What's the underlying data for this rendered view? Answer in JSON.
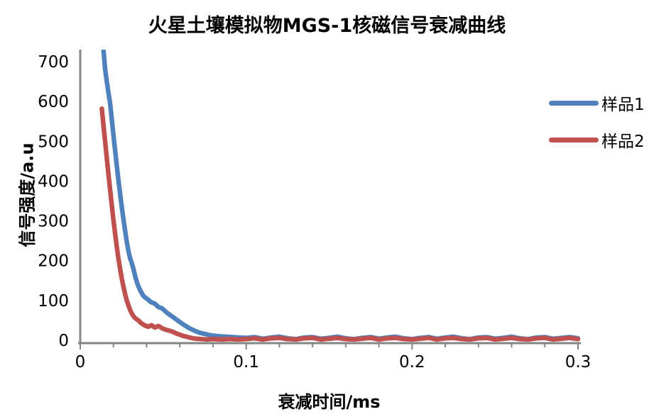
{
  "chart_data": {
    "type": "line",
    "title": "火星土壤模拟物MGS-1核磁信号衰减曲线",
    "xlabel": "衰减时间/ms",
    "ylabel": "信号强度/a.u",
    "xlim": [
      0,
      0.3
    ],
    "ylim": [
      0,
      700
    ],
    "display_ymax": 730,
    "grid": false,
    "legend_position": "right",
    "axis_color": "#848484",
    "text_color": "#000000",
    "background_color": "#ffffff",
    "xticks": [
      0,
      0.1,
      0.2,
      0.3
    ],
    "xtick_labels": [
      "0",
      "0.1",
      "0.2",
      "0.3"
    ],
    "minor_xtick_step": 0.02,
    "yticks": [
      0,
      100,
      200,
      300,
      400,
      500,
      600,
      700
    ],
    "ytick_labels": [
      "0",
      "100",
      "200",
      "300",
      "400",
      "500",
      "600",
      "700"
    ],
    "series": [
      {
        "name": "样品1",
        "color": "#4F81BD",
        "points": [
          [
            0.013,
            815
          ],
          [
            0.014,
            730
          ],
          [
            0.015,
            680
          ],
          [
            0.016,
            650
          ],
          [
            0.017,
            622
          ],
          [
            0.018,
            595
          ],
          [
            0.019,
            556
          ],
          [
            0.02,
            516
          ],
          [
            0.021,
            477
          ],
          [
            0.022,
            440
          ],
          [
            0.023,
            404
          ],
          [
            0.024,
            369
          ],
          [
            0.025,
            336
          ],
          [
            0.026,
            305
          ],
          [
            0.027,
            276
          ],
          [
            0.028,
            249
          ],
          [
            0.029,
            225
          ],
          [
            0.03,
            207
          ],
          [
            0.031,
            195
          ],
          [
            0.032,
            180
          ],
          [
            0.033,
            163
          ],
          [
            0.034,
            148
          ],
          [
            0.035,
            136
          ],
          [
            0.036,
            127
          ],
          [
            0.037,
            119
          ],
          [
            0.038,
            112
          ],
          [
            0.039,
            108
          ],
          [
            0.04,
            105
          ],
          [
            0.041,
            102
          ],
          [
            0.042,
            98
          ],
          [
            0.043,
            95
          ],
          [
            0.044,
            94
          ],
          [
            0.045,
            92
          ],
          [
            0.046,
            88
          ],
          [
            0.047,
            84
          ],
          [
            0.048,
            82
          ],
          [
            0.049,
            81
          ],
          [
            0.05,
            78
          ],
          [
            0.051,
            74
          ],
          [
            0.052,
            70
          ],
          [
            0.053,
            67
          ],
          [
            0.054,
            64
          ],
          [
            0.056,
            58
          ],
          [
            0.058,
            52
          ],
          [
            0.06,
            46
          ],
          [
            0.062,
            40
          ],
          [
            0.064,
            35
          ],
          [
            0.066,
            30
          ],
          [
            0.068,
            26
          ],
          [
            0.07,
            22
          ],
          [
            0.072,
            19
          ],
          [
            0.074,
            17
          ],
          [
            0.076,
            15
          ],
          [
            0.078,
            13
          ],
          [
            0.08,
            12
          ],
          [
            0.084,
            10
          ],
          [
            0.088,
            9
          ],
          [
            0.092,
            8
          ],
          [
            0.096,
            7
          ],
          [
            0.1,
            6
          ],
          [
            0.105,
            8
          ],
          [
            0.11,
            4
          ],
          [
            0.115,
            7
          ],
          [
            0.12,
            9
          ],
          [
            0.125,
            5
          ],
          [
            0.13,
            3
          ],
          [
            0.135,
            7
          ],
          [
            0.14,
            8
          ],
          [
            0.145,
            4
          ],
          [
            0.15,
            6
          ],
          [
            0.155,
            9
          ],
          [
            0.16,
            5
          ],
          [
            0.165,
            3
          ],
          [
            0.17,
            6
          ],
          [
            0.175,
            8
          ],
          [
            0.18,
            4
          ],
          [
            0.185,
            7
          ],
          [
            0.19,
            9
          ],
          [
            0.195,
            5
          ],
          [
            0.2,
            3
          ],
          [
            0.205,
            6
          ],
          [
            0.21,
            8
          ],
          [
            0.215,
            4
          ],
          [
            0.22,
            7
          ],
          [
            0.225,
            9
          ],
          [
            0.23,
            5
          ],
          [
            0.235,
            3
          ],
          [
            0.24,
            7
          ],
          [
            0.245,
            8
          ],
          [
            0.25,
            4
          ],
          [
            0.255,
            6
          ],
          [
            0.26,
            9
          ],
          [
            0.265,
            5
          ],
          [
            0.27,
            3
          ],
          [
            0.275,
            7
          ],
          [
            0.28,
            8
          ],
          [
            0.285,
            4
          ],
          [
            0.29,
            6
          ],
          [
            0.295,
            8
          ],
          [
            0.3,
            5
          ]
        ]
      },
      {
        "name": "样品2",
        "color": "#C0504D",
        "points": [
          [
            0.013,
            582
          ],
          [
            0.014,
            540
          ],
          [
            0.015,
            499
          ],
          [
            0.016,
            458
          ],
          [
            0.017,
            418
          ],
          [
            0.018,
            378
          ],
          [
            0.019,
            340
          ],
          [
            0.02,
            303
          ],
          [
            0.021,
            268
          ],
          [
            0.022,
            236
          ],
          [
            0.023,
            206
          ],
          [
            0.024,
            180
          ],
          [
            0.025,
            156
          ],
          [
            0.026,
            135
          ],
          [
            0.027,
            117
          ],
          [
            0.028,
            101
          ],
          [
            0.029,
            88
          ],
          [
            0.03,
            77
          ],
          [
            0.031,
            68
          ],
          [
            0.032,
            61
          ],
          [
            0.033,
            56
          ],
          [
            0.034,
            53
          ],
          [
            0.035,
            50
          ],
          [
            0.036,
            46
          ],
          [
            0.037,
            42
          ],
          [
            0.038,
            40
          ],
          [
            0.039,
            37
          ],
          [
            0.04,
            36
          ],
          [
            0.041,
            34
          ],
          [
            0.042,
            36
          ],
          [
            0.043,
            38
          ],
          [
            0.044,
            35
          ],
          [
            0.045,
            32
          ],
          [
            0.046,
            34
          ],
          [
            0.047,
            36
          ],
          [
            0.048,
            34
          ],
          [
            0.049,
            31
          ],
          [
            0.05,
            29
          ],
          [
            0.052,
            26
          ],
          [
            0.054,
            24
          ],
          [
            0.056,
            21
          ],
          [
            0.058,
            17
          ],
          [
            0.06,
            14
          ],
          [
            0.062,
            11
          ],
          [
            0.064,
            9
          ],
          [
            0.066,
            7
          ],
          [
            0.068,
            5
          ],
          [
            0.07,
            4
          ],
          [
            0.073,
            3
          ],
          [
            0.076,
            2
          ],
          [
            0.08,
            3
          ],
          [
            0.085,
            2
          ],
          [
            0.09,
            3
          ],
          [
            0.095,
            2
          ],
          [
            0.1,
            3
          ],
          [
            0.105,
            5
          ],
          [
            0.11,
            2
          ],
          [
            0.115,
            5
          ],
          [
            0.12,
            6
          ],
          [
            0.125,
            3
          ],
          [
            0.13,
            2
          ],
          [
            0.135,
            5
          ],
          [
            0.14,
            6
          ],
          [
            0.145,
            2
          ],
          [
            0.15,
            4
          ],
          [
            0.155,
            6
          ],
          [
            0.16,
            3
          ],
          [
            0.165,
            2
          ],
          [
            0.17,
            4
          ],
          [
            0.175,
            6
          ],
          [
            0.18,
            2
          ],
          [
            0.185,
            5
          ],
          [
            0.19,
            6
          ],
          [
            0.195,
            3
          ],
          [
            0.2,
            2
          ],
          [
            0.205,
            4
          ],
          [
            0.21,
            6
          ],
          [
            0.215,
            2
          ],
          [
            0.22,
            5
          ],
          [
            0.225,
            6
          ],
          [
            0.23,
            3
          ],
          [
            0.235,
            2
          ],
          [
            0.24,
            5
          ],
          [
            0.245,
            6
          ],
          [
            0.25,
            2
          ],
          [
            0.255,
            4
          ],
          [
            0.26,
            6
          ],
          [
            0.265,
            3
          ],
          [
            0.27,
            2
          ],
          [
            0.275,
            5
          ],
          [
            0.28,
            6
          ],
          [
            0.285,
            2
          ],
          [
            0.29,
            4
          ],
          [
            0.295,
            6
          ],
          [
            0.3,
            3
          ]
        ]
      }
    ]
  }
}
